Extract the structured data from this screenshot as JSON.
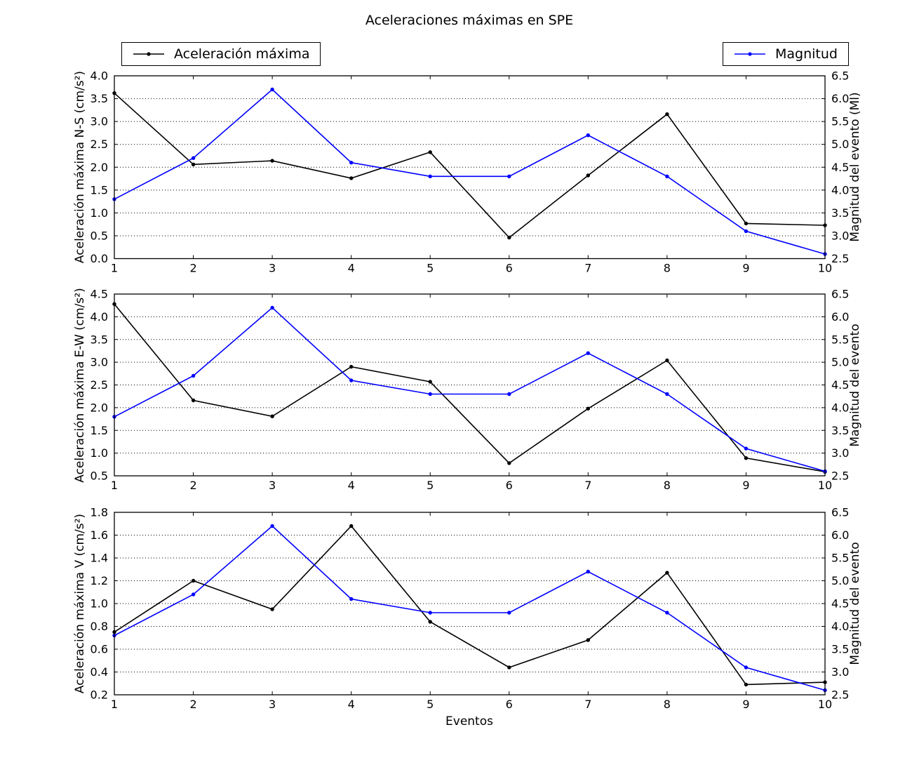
{
  "title": "Aceleraciones máximas en SPE",
  "xlabel": "Eventos",
  "legend": {
    "acceleration": {
      "label": "Aceleración máxima",
      "color": "#000000"
    },
    "magnitude": {
      "label": "Magnitud",
      "color": "#0000ff"
    }
  },
  "chart_data": [
    {
      "type": "line",
      "x": [
        1,
        2,
        3,
        4,
        5,
        6,
        7,
        8,
        9,
        10
      ],
      "ylabel_left": "Aceleración máxima N-S (cm/s²)",
      "ylabel_right": "Magnitud del evento (Ml)",
      "ylim_left": [
        0.0,
        4.0
      ],
      "ylim_right": [
        2.5,
        6.5
      ],
      "ytick_step_left": 0.5,
      "ytick_step_right": 0.5,
      "grid": "horizontal-dotted",
      "legend_position": "above",
      "series": [
        {
          "name": "Aceleración máxima",
          "axis": "left",
          "color": "#000000",
          "values": [
            3.62,
            2.06,
            2.14,
            1.76,
            2.33,
            0.46,
            1.82,
            3.16,
            0.77,
            0.73
          ]
        },
        {
          "name": "Magnitud",
          "axis": "right",
          "color": "#0000ff",
          "values": [
            3.8,
            4.7,
            6.2,
            4.6,
            4.3,
            4.3,
            5.2,
            4.3,
            3.1,
            2.6
          ]
        }
      ]
    },
    {
      "type": "line",
      "x": [
        1,
        2,
        3,
        4,
        5,
        6,
        7,
        8,
        9,
        10
      ],
      "ylabel_left": "Aceleración máxima E-W (cm/s²)",
      "ylabel_right": "Magnitud del evento",
      "ylim_left": [
        0.5,
        4.5
      ],
      "ylim_right": [
        2.5,
        6.5
      ],
      "ytick_step_left": 0.5,
      "ytick_step_right": 0.5,
      "grid": "horizontal-dotted",
      "series": [
        {
          "name": "Aceleración máxima",
          "axis": "left",
          "color": "#000000",
          "values": [
            4.28,
            2.16,
            1.81,
            2.9,
            2.57,
            0.78,
            1.98,
            3.04,
            0.89,
            0.59
          ]
        },
        {
          "name": "Magnitud",
          "axis": "right",
          "color": "#0000ff",
          "values": [
            3.8,
            4.7,
            6.2,
            4.6,
            4.3,
            4.3,
            5.2,
            4.3,
            3.1,
            2.6
          ]
        }
      ]
    },
    {
      "type": "line",
      "x": [
        1,
        2,
        3,
        4,
        5,
        6,
        7,
        8,
        9,
        10
      ],
      "xlabel": "Eventos",
      "ylabel_left": "Aceleración máxima V (cm/s²)",
      "ylabel_right": "Magnitud del evento",
      "ylim_left": [
        0.2,
        1.8
      ],
      "ylim_right": [
        2.5,
        6.5
      ],
      "ytick_step_left": 0.2,
      "ytick_step_right": 0.5,
      "grid": "horizontal-dotted",
      "series": [
        {
          "name": "Aceleración máxima",
          "axis": "left",
          "color": "#000000",
          "values": [
            0.75,
            1.2,
            0.95,
            1.68,
            0.84,
            0.44,
            0.68,
            1.27,
            0.29,
            0.31
          ]
        },
        {
          "name": "Magnitud",
          "axis": "right",
          "color": "#0000ff",
          "values": [
            3.8,
            4.7,
            6.2,
            4.6,
            4.3,
            4.3,
            5.2,
            4.3,
            3.1,
            2.6
          ]
        }
      ]
    }
  ]
}
